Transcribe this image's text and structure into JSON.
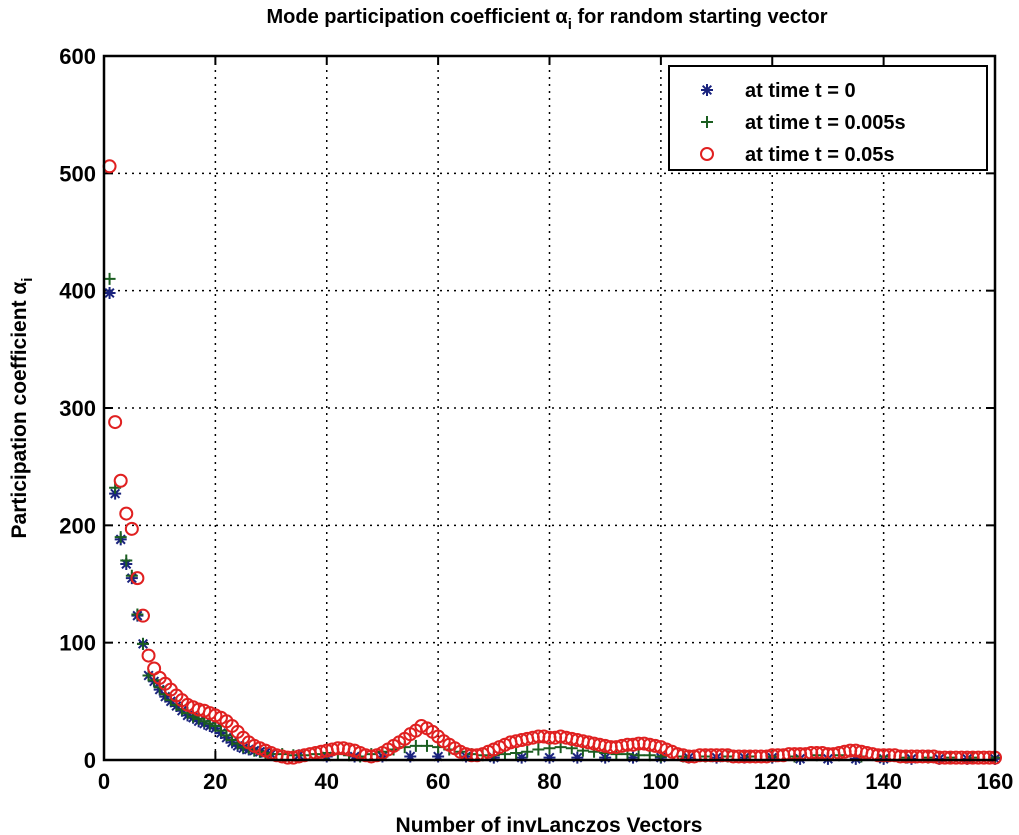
{
  "chart_data": {
    "type": "scatter",
    "title": "Mode participation coefficient αi for random starting vector",
    "title_main": "Mode participation coefficient ",
    "title_symbol": "α",
    "title_sub": "i",
    "title_rest": " for random starting vector",
    "xlabel": "Number of invLanczos Vectors",
    "ylabel_main": "Participation coefficient ",
    "ylabel_symbol": "α",
    "ylabel_sub": "i",
    "xlim": [
      0,
      160
    ],
    "ylim": [
      0,
      600
    ],
    "xticks": [
      0,
      20,
      40,
      60,
      80,
      100,
      120,
      140,
      160
    ],
    "yticks": [
      0,
      100,
      200,
      300,
      400,
      500,
      600
    ],
    "grid": true,
    "legend_position": "top-right",
    "series": [
      {
        "name": "at time t = 0",
        "marker": "asterisk",
        "color": "#1a237e",
        "x": [
          1,
          2,
          3,
          4,
          5,
          6,
          7,
          8,
          9,
          10,
          11,
          12,
          13,
          14,
          15,
          16,
          17,
          18,
          19,
          20,
          21,
          22,
          23,
          24,
          25,
          26,
          27,
          28,
          29,
          30,
          35,
          40,
          45,
          50,
          55,
          60,
          65,
          70,
          75,
          80,
          85,
          90,
          95,
          100,
          105,
          110,
          115,
          120,
          125,
          130,
          135,
          140,
          145,
          150,
          155,
          160
        ],
        "y": [
          398,
          227,
          188,
          167,
          155,
          123,
          99,
          72,
          67,
          60,
          54,
          50,
          46,
          42,
          38,
          36,
          33,
          31,
          29,
          27,
          23,
          19,
          15,
          12,
          10,
          9,
          8,
          7,
          6,
          5,
          4,
          3,
          3,
          3,
          3,
          3,
          3,
          2,
          2,
          2,
          2,
          2,
          2,
          2,
          2,
          2,
          2,
          2,
          1,
          1,
          1,
          1,
          1,
          1,
          1,
          1
        ]
      },
      {
        "name": "at time t = 0.005s",
        "marker": "plus",
        "color": "#1b5e20",
        "x": [
          1,
          2,
          3,
          4,
          5,
          6,
          7,
          8,
          9,
          10,
          11,
          12,
          13,
          14,
          15,
          16,
          17,
          18,
          19,
          20,
          21,
          22,
          23,
          24,
          25,
          26,
          27,
          28,
          29,
          30,
          32,
          34,
          36,
          38,
          40,
          42,
          44,
          46,
          48,
          50,
          52,
          54,
          56,
          58,
          60,
          62,
          64,
          66,
          68,
          70,
          72,
          74,
          76,
          78,
          80,
          82,
          84,
          86,
          88,
          90,
          92,
          94,
          96,
          98,
          100,
          104,
          108,
          112,
          116,
          120,
          124,
          128,
          132,
          136,
          140,
          144,
          148,
          152,
          156,
          160
        ],
        "y": [
          410,
          232,
          190,
          170,
          157,
          124,
          99,
          72,
          68,
          62,
          56,
          51,
          47,
          43,
          40,
          37,
          35,
          33,
          31,
          29,
          25,
          21,
          17,
          14,
          11,
          10,
          8,
          7,
          6,
          5,
          5,
          4,
          4,
          5,
          6,
          5,
          4,
          3,
          5,
          7,
          9,
          11,
          12,
          12,
          11,
          9,
          7,
          5,
          4,
          4,
          5,
          6,
          7,
          9,
          10,
          11,
          10,
          8,
          7,
          6,
          5,
          5,
          4,
          4,
          3,
          3,
          3,
          3,
          3,
          3,
          3,
          4,
          4,
          3,
          3,
          2,
          2,
          2,
          2,
          2
        ]
      },
      {
        "name": "at time t = 0.05s",
        "marker": "circle",
        "color": "#e02020",
        "x": [
          1,
          2,
          3,
          4,
          5,
          6,
          7,
          8,
          9,
          10,
          11,
          12,
          13,
          14,
          15,
          16,
          17,
          18,
          19,
          20,
          21,
          22,
          23,
          24,
          25,
          26,
          27,
          28,
          29,
          30,
          31,
          32,
          33,
          34,
          35,
          36,
          37,
          38,
          39,
          40,
          41,
          42,
          43,
          44,
          45,
          46,
          47,
          48,
          49,
          50,
          51,
          52,
          53,
          54,
          55,
          56,
          57,
          58,
          59,
          60,
          61,
          62,
          63,
          64,
          65,
          66,
          67,
          68,
          69,
          70,
          71,
          72,
          73,
          74,
          75,
          76,
          77,
          78,
          79,
          80,
          81,
          82,
          83,
          84,
          85,
          86,
          87,
          88,
          89,
          90,
          91,
          92,
          93,
          94,
          95,
          96,
          97,
          98,
          99,
          100,
          101,
          102,
          103,
          104,
          105,
          106,
          107,
          108,
          109,
          110,
          111,
          112,
          113,
          114,
          115,
          116,
          117,
          118,
          119,
          120,
          121,
          122,
          123,
          124,
          125,
          126,
          127,
          128,
          129,
          130,
          131,
          132,
          133,
          134,
          135,
          136,
          137,
          138,
          139,
          140,
          141,
          142,
          143,
          144,
          145,
          146,
          147,
          148,
          149,
          150,
          151,
          152,
          153,
          154,
          155,
          156,
          157,
          158,
          159,
          160
        ],
        "y": [
          506,
          288,
          238,
          210,
          197,
          155,
          123,
          89,
          78,
          70,
          65,
          60,
          55,
          51,
          47,
          45,
          43,
          42,
          40,
          38,
          36,
          33,
          29,
          24,
          19,
          15,
          12,
          10,
          8,
          6,
          4,
          3,
          2,
          2,
          3,
          4,
          5,
          6,
          7,
          8,
          9,
          10,
          10,
          9,
          8,
          6,
          4,
          3,
          4,
          6,
          9,
          12,
          15,
          18,
          22,
          25,
          29,
          27,
          24,
          20,
          16,
          13,
          10,
          7,
          5,
          4,
          4,
          5,
          7,
          9,
          11,
          13,
          15,
          16,
          17,
          18,
          19,
          20,
          20,
          19,
          19,
          20,
          19,
          18,
          17,
          16,
          15,
          14,
          13,
          12,
          11,
          11,
          12,
          13,
          13,
          14,
          14,
          13,
          12,
          11,
          9,
          7,
          5,
          4,
          3,
          3,
          4,
          4,
          4,
          4,
          4,
          4,
          3,
          3,
          3,
          3,
          3,
          3,
          3,
          4,
          4,
          4,
          5,
          5,
          5,
          5,
          6,
          6,
          6,
          5,
          5,
          6,
          7,
          8,
          8,
          7,
          6,
          5,
          4,
          4,
          4,
          4,
          3,
          3,
          3,
          3,
          3,
          3,
          3,
          2,
          2,
          2,
          2,
          2,
          2,
          2,
          2,
          2,
          2,
          2
        ]
      }
    ]
  }
}
